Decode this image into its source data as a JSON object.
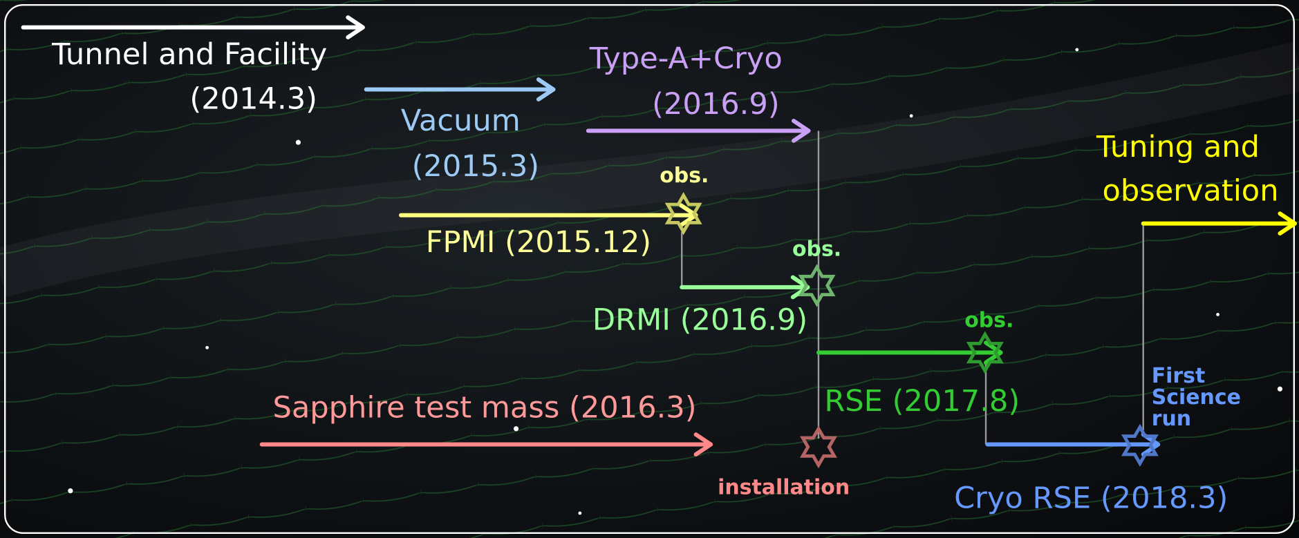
{
  "tunnel": {
    "label": "Tunnel and Facility",
    "date": "(2014.3)"
  },
  "vacuum": {
    "label": "Vacuum",
    "date": "(2015.3)"
  },
  "type_a": {
    "label": "Type-A+Cryo",
    "date": "(2016.9)"
  },
  "fpmi": {
    "label": "FPMI (2015.12)",
    "marker": "obs."
  },
  "drmi": {
    "label": "DRMI (2016.9)",
    "marker": "obs."
  },
  "rse": {
    "label": "RSE (2017.8)",
    "marker": "obs."
  },
  "sapphire": {
    "label": "Sapphire test mass (2016.3)",
    "marker": "installation"
  },
  "cryo_rse": {
    "label": "Cryo RSE (2018.3)",
    "marker": [
      "First",
      "Science",
      "run"
    ]
  },
  "tuning": {
    "label": [
      "Tuning and",
      "observation"
    ]
  }
}
